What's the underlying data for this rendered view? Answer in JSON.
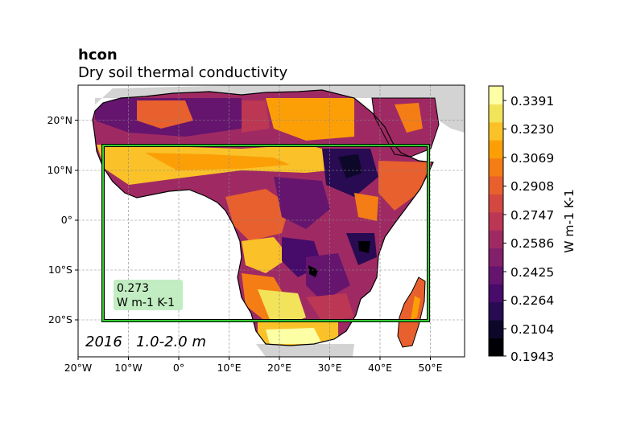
{
  "header": {
    "variable": "hcon",
    "long_name": "Dry soil thermal conductivity"
  },
  "map": {
    "lon_ticks": [
      "20°W",
      "10°W",
      "0°",
      "10°E",
      "20°E",
      "30°E",
      "40°E",
      "50°E"
    ],
    "lat_ticks": [
      "20°N",
      "10°N",
      "0°",
      "10°S",
      "20°S"
    ],
    "extent": {
      "lon": [
        -20,
        57
      ],
      "lat": [
        -27,
        27
      ]
    },
    "region_box": {
      "lon": [
        -15,
        50
      ],
      "lat": [
        -20,
        15
      ],
      "color": "#33cc33"
    },
    "mean_value": "0.273",
    "mean_units": "W m-1 K-1",
    "stamp": "2016   1.0-2.0 m",
    "ocean_color": "#ffffff",
    "nodata_land_color": "#d3d3d3"
  },
  "colorbar": {
    "label": "W m-1 K-1",
    "tick_labels": [
      "0.3391",
      "0.3230",
      "0.3069",
      "0.2908",
      "0.2747",
      "0.2586",
      "0.2425",
      "0.2264",
      "0.2104",
      "0.1943"
    ],
    "colormap": "inferno",
    "colors": [
      "#000004",
      "#0d0829",
      "#280b53",
      "#470b6a",
      "#65156e",
      "#82206c",
      "#9f2a63",
      "#bc3754",
      "#d44842",
      "#e8602d",
      "#f57d15",
      "#fc9f07",
      "#fac228",
      "#f3e35a",
      "#fcffa4"
    ]
  }
}
